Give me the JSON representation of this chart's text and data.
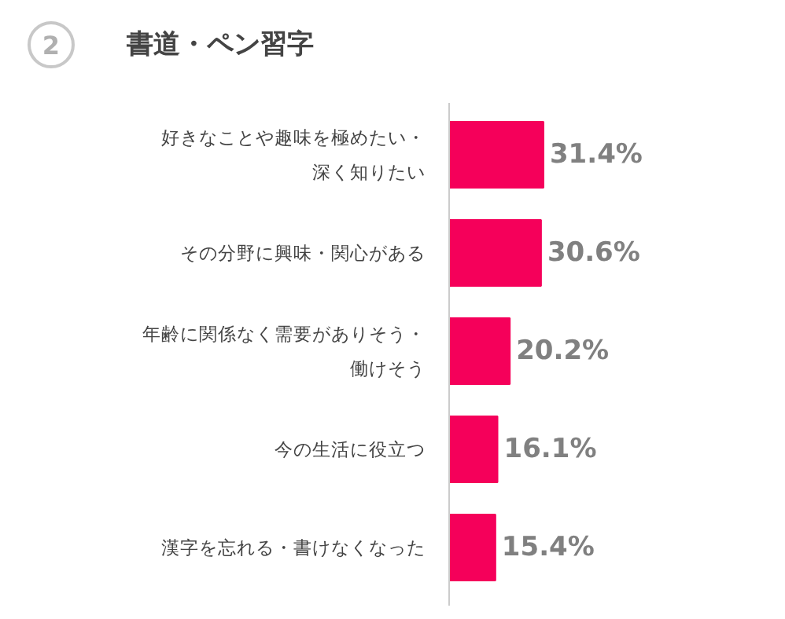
{
  "chart_data": {
    "type": "bar",
    "orientation": "horizontal",
    "title": "書道・ペン習字",
    "annotations": [
      "2"
    ],
    "categories": [
      "好きなことや趣味を極めたい・深く知りたい",
      "その分野に興味・関心がある",
      "年齢に関係なく需要がありそう・働けそう",
      "今の生活に役立つ",
      "漢字を忘れる・書けなくなった"
    ],
    "values": [
      31.4,
      30.6,
      20.2,
      16.1,
      15.4
    ],
    "value_labels": [
      "31.4%",
      "30.6%",
      "20.2%",
      "16.1%",
      "15.4%"
    ],
    "color": "#f5005a",
    "grid": false
  }
}
